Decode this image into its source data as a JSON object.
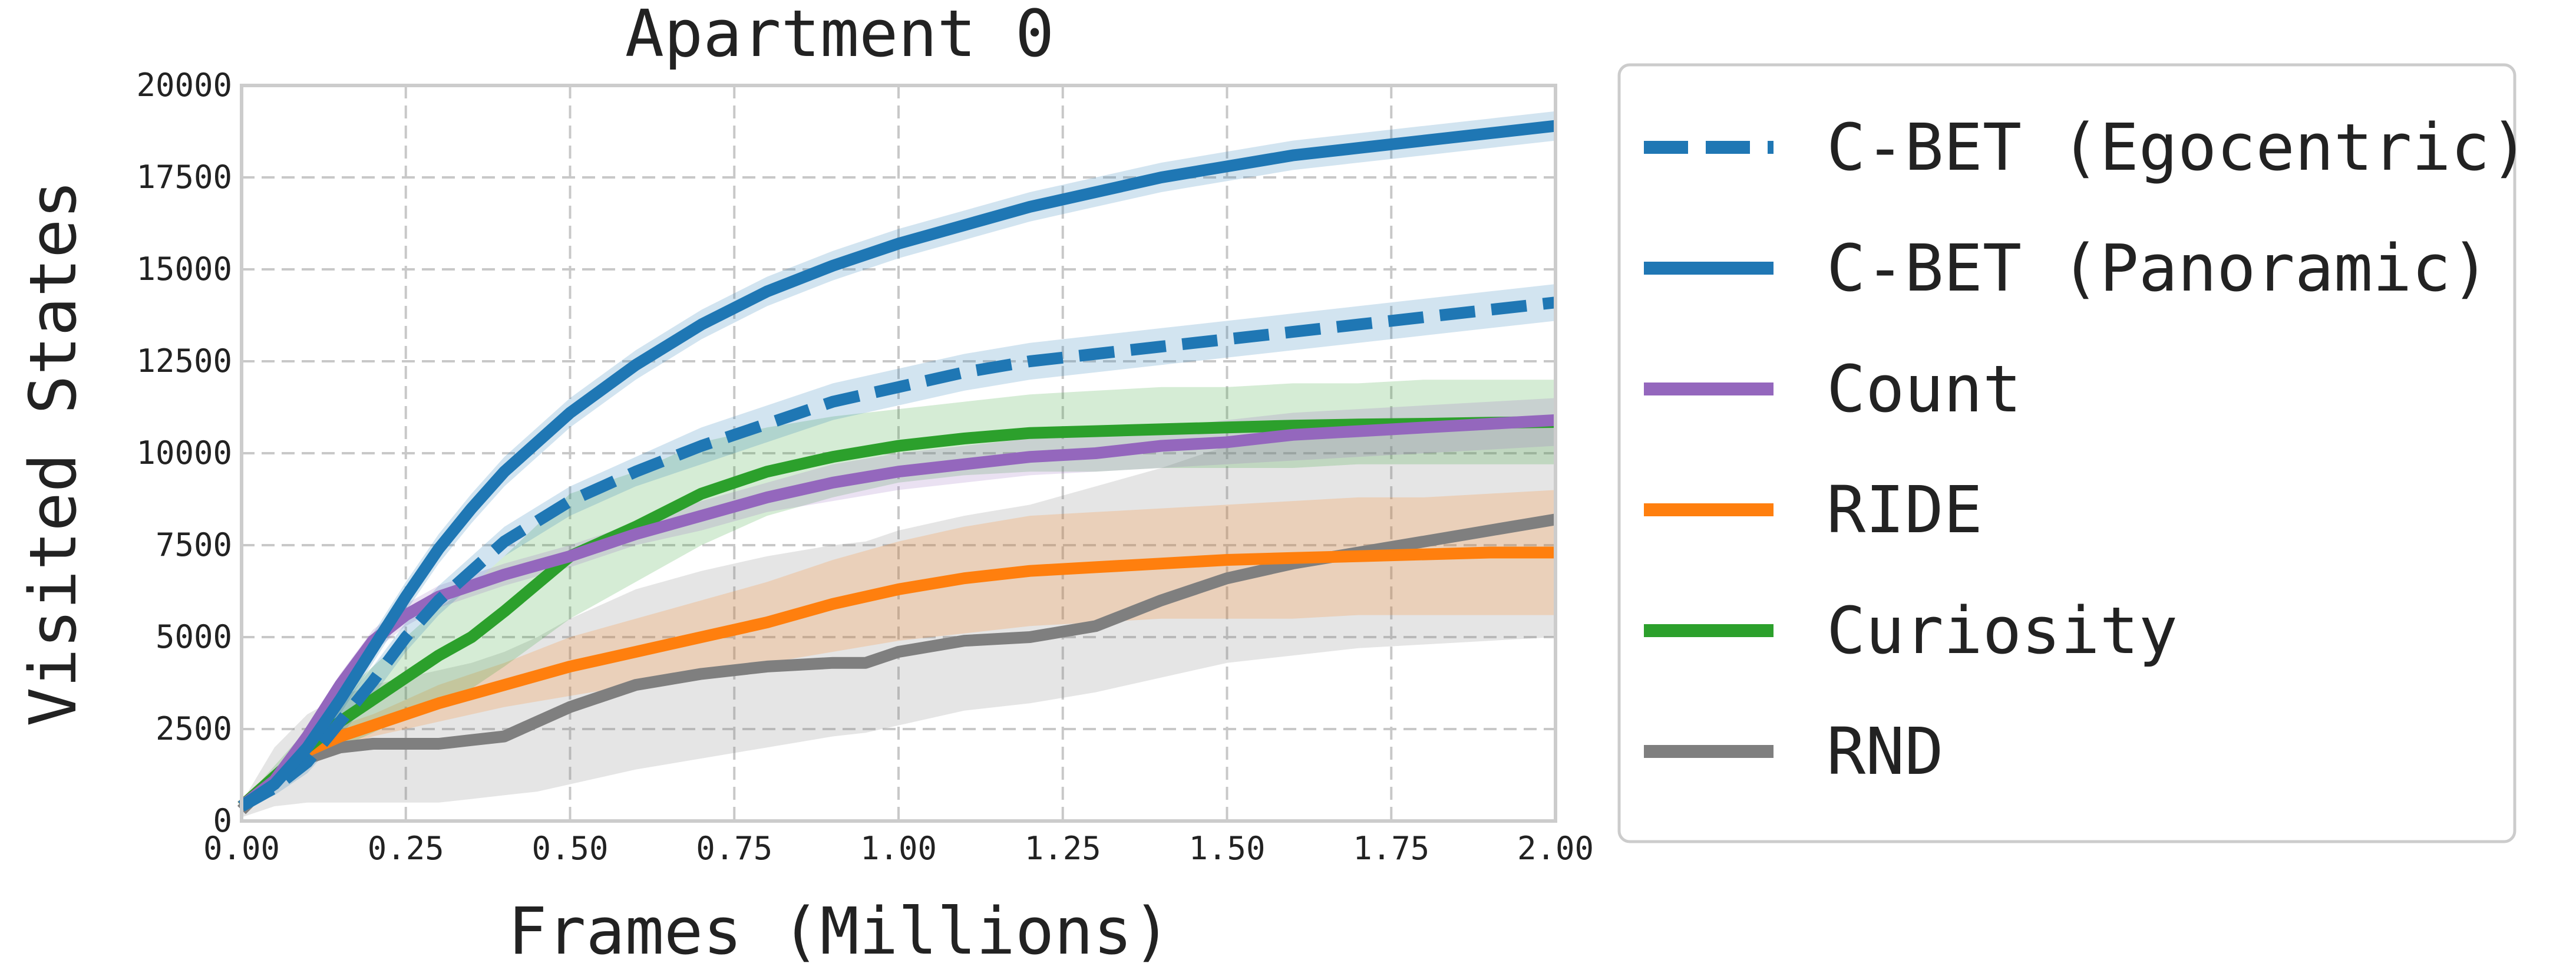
{
  "chart_data": {
    "type": "line",
    "title": "Apartment 0",
    "xlabel": "Frames (Millions)",
    "ylabel": "Visited States",
    "xlim": [
      0,
      2
    ],
    "ylim": [
      0,
      20000
    ],
    "xticks": [
      0,
      0.25,
      0.5,
      0.75,
      1.0,
      1.25,
      1.5,
      1.75,
      2.0
    ],
    "xtick_labels": [
      "0.00",
      "0.25",
      "0.50",
      "0.75",
      "1.00",
      "1.25",
      "1.50",
      "1.75",
      "2.00"
    ],
    "yticks": [
      0,
      2500,
      5000,
      7500,
      10000,
      12500,
      15000,
      17500,
      20000
    ],
    "ytick_labels": [
      "0",
      "2500",
      "5000",
      "7500",
      "10000",
      "12500",
      "15000",
      "17500",
      "20000"
    ],
    "grid": true,
    "legend_position": "outside-right",
    "series": [
      {
        "name": "C-BET (Egocentric)",
        "color": "#1f77b4",
        "dash": true,
        "x": [
          0,
          0.05,
          0.1,
          0.15,
          0.2,
          0.25,
          0.3,
          0.35,
          0.4,
          0.5,
          0.6,
          0.7,
          0.8,
          0.9,
          1.0,
          1.1,
          1.2,
          1.3,
          1.4,
          1.5,
          1.6,
          1.7,
          1.8,
          1.9,
          2.0
        ],
        "y": [
          400,
          900,
          1600,
          2700,
          3800,
          5000,
          6000,
          6800,
          7600,
          8700,
          9500,
          10200,
          10800,
          11400,
          11800,
          12200,
          12500,
          12700,
          12900,
          13100,
          13300,
          13500,
          13700,
          13900,
          14100
        ],
        "lower": [
          300,
          700,
          1300,
          2300,
          3400,
          4600,
          5600,
          6400,
          7200,
          8300,
          9100,
          9700,
          10300,
          10900,
          11300,
          11700,
          12000,
          12200,
          12400,
          12600,
          12800,
          13000,
          13200,
          13400,
          13600
        ],
        "upper": [
          500,
          1100,
          1900,
          3100,
          4200,
          5400,
          6400,
          7200,
          8000,
          9100,
          9900,
          10700,
          11300,
          11900,
          12300,
          12700,
          13000,
          13200,
          13400,
          13600,
          13800,
          14000,
          14200,
          14400,
          14600
        ]
      },
      {
        "name": "C-BET (Panoramic)",
        "color": "#1f77b4",
        "dash": false,
        "x": [
          0,
          0.05,
          0.1,
          0.15,
          0.2,
          0.25,
          0.3,
          0.35,
          0.4,
          0.5,
          0.6,
          0.7,
          0.8,
          0.9,
          1.0,
          1.1,
          1.2,
          1.3,
          1.4,
          1.5,
          1.6,
          1.7,
          1.8,
          1.9,
          2.0
        ],
        "y": [
          400,
          1000,
          2000,
          3300,
          4700,
          6100,
          7400,
          8500,
          9500,
          11100,
          12400,
          13500,
          14400,
          15100,
          15700,
          16200,
          16700,
          17100,
          17500,
          17800,
          18100,
          18300,
          18500,
          18700,
          18900
        ],
        "lower": [
          300,
          800,
          1700,
          2900,
          4300,
          5700,
          7000,
          8100,
          9100,
          10700,
          12000,
          13100,
          14000,
          14700,
          15300,
          15800,
          16300,
          16700,
          17100,
          17400,
          17700,
          17900,
          18100,
          18300,
          18500
        ],
        "upper": [
          500,
          1200,
          2300,
          3700,
          5100,
          6500,
          7800,
          8900,
          9900,
          11500,
          12800,
          13900,
          14800,
          15500,
          16100,
          16600,
          17100,
          17500,
          17900,
          18200,
          18500,
          18700,
          18900,
          19100,
          19300
        ]
      },
      {
        "name": "Count",
        "color": "#9467bd",
        "dash": false,
        "x": [
          0,
          0.05,
          0.1,
          0.15,
          0.2,
          0.25,
          0.3,
          0.4,
          0.5,
          0.6,
          0.7,
          0.8,
          0.9,
          1.0,
          1.1,
          1.2,
          1.3,
          1.4,
          1.5,
          1.6,
          1.7,
          1.8,
          1.9,
          2.0
        ],
        "y": [
          400,
          1100,
          2300,
          3700,
          4900,
          5600,
          6100,
          6700,
          7200,
          7800,
          8300,
          8800,
          9200,
          9500,
          9700,
          9900,
          10000,
          10200,
          10300,
          10500,
          10600,
          10700,
          10800,
          10900
        ],
        "lower": [
          300,
          900,
          2000,
          3400,
          4600,
          5300,
          5800,
          6400,
          6900,
          7500,
          7900,
          8400,
          8700,
          9000,
          9200,
          9400,
          9500,
          9600,
          9700,
          9800,
          9900,
          10000,
          10100,
          10200
        ],
        "upper": [
          500,
          1300,
          2600,
          4000,
          5200,
          5900,
          6400,
          7000,
          7500,
          8100,
          8700,
          9200,
          9700,
          10000,
          10200,
          10400,
          10500,
          10700,
          10900,
          11100,
          11200,
          11300,
          11400,
          11500
        ]
      },
      {
        "name": "RIDE",
        "color": "#ff7f0e",
        "dash": false,
        "x": [
          0,
          0.05,
          0.1,
          0.15,
          0.2,
          0.25,
          0.3,
          0.4,
          0.5,
          0.6,
          0.7,
          0.8,
          0.9,
          1.0,
          1.1,
          1.2,
          1.3,
          1.4,
          1.5,
          1.6,
          1.7,
          1.8,
          1.9,
          2.0
        ],
        "y": [
          400,
          1200,
          1900,
          2300,
          2600,
          2900,
          3200,
          3700,
          4200,
          4600,
          5000,
          5400,
          5900,
          6300,
          6600,
          6800,
          6900,
          7000,
          7100,
          7150,
          7200,
          7250,
          7300,
          7300
        ],
        "lower": [
          300,
          1000,
          1600,
          2000,
          2300,
          2500,
          2700,
          3100,
          3400,
          3700,
          4000,
          4300,
          4600,
          4900,
          5100,
          5300,
          5400,
          5500,
          5500,
          5500,
          5600,
          5600,
          5600,
          5600
        ],
        "upper": [
          500,
          1400,
          2200,
          2600,
          2900,
          3300,
          3700,
          4300,
          5000,
          5500,
          6000,
          6500,
          7100,
          7600,
          8000,
          8300,
          8400,
          8500,
          8600,
          8700,
          8800,
          8800,
          8900,
          9000
        ]
      },
      {
        "name": "Curiosity",
        "color": "#2ca02c",
        "dash": false,
        "x": [
          0,
          0.05,
          0.1,
          0.15,
          0.2,
          0.25,
          0.3,
          0.35,
          0.4,
          0.5,
          0.6,
          0.7,
          0.8,
          0.9,
          1.0,
          1.1,
          1.2,
          1.3,
          1.4,
          1.5,
          1.6,
          1.7,
          1.8,
          1.9,
          2.0
        ],
        "y": [
          400,
          1200,
          2000,
          2700,
          3300,
          3900,
          4500,
          5000,
          5700,
          7200,
          8000,
          8900,
          9500,
          9900,
          10200,
          10400,
          10550,
          10600,
          10650,
          10700,
          10750,
          10780,
          10800,
          10830,
          10850
        ],
        "lower": [
          300,
          900,
          1500,
          2000,
          2400,
          2800,
          3200,
          3600,
          4200,
          5500,
          6500,
          7500,
          8300,
          8800,
          9200,
          9400,
          9500,
          9500,
          9600,
          9600,
          9600,
          9700,
          9700,
          9700,
          9700
        ],
        "upper": [
          500,
          1500,
          2500,
          3400,
          4200,
          5000,
          5800,
          6400,
          7200,
          8900,
          9500,
          10300,
          10700,
          11000,
          11200,
          11400,
          11600,
          11700,
          11800,
          11800,
          11900,
          11900,
          12000,
          12000,
          12000
        ]
      },
      {
        "name": "RND",
        "color": "#7f7f7f",
        "dash": false,
        "x": [
          0,
          0.05,
          0.1,
          0.15,
          0.2,
          0.25,
          0.3,
          0.35,
          0.4,
          0.45,
          0.5,
          0.6,
          0.7,
          0.8,
          0.9,
          0.95,
          1.0,
          1.1,
          1.2,
          1.3,
          1.4,
          1.5,
          1.6,
          1.7,
          1.8,
          1.9,
          2.0
        ],
        "y": [
          300,
          1200,
          1700,
          2000,
          2100,
          2100,
          2100,
          2200,
          2300,
          2700,
          3100,
          3700,
          4000,
          4200,
          4300,
          4300,
          4600,
          4900,
          5000,
          5300,
          6000,
          6600,
          7000,
          7300,
          7600,
          7900,
          8200
        ],
        "lower": [
          100,
          400,
          500,
          500,
          500,
          500,
          500,
          600,
          700,
          800,
          1000,
          1400,
          1700,
          2000,
          2300,
          2400,
          2600,
          3000,
          3200,
          3500,
          3900,
          4300,
          4500,
          4700,
          4800,
          4900,
          5000
        ],
        "upper": [
          500,
          2000,
          2900,
          3400,
          3700,
          3900,
          4100,
          4300,
          4600,
          5000,
          5500,
          6300,
          6800,
          7200,
          7500,
          7600,
          7900,
          8300,
          8600,
          9100,
          9600,
          10200,
          10500,
          10700,
          10800,
          10900,
          11000
        ]
      }
    ]
  }
}
